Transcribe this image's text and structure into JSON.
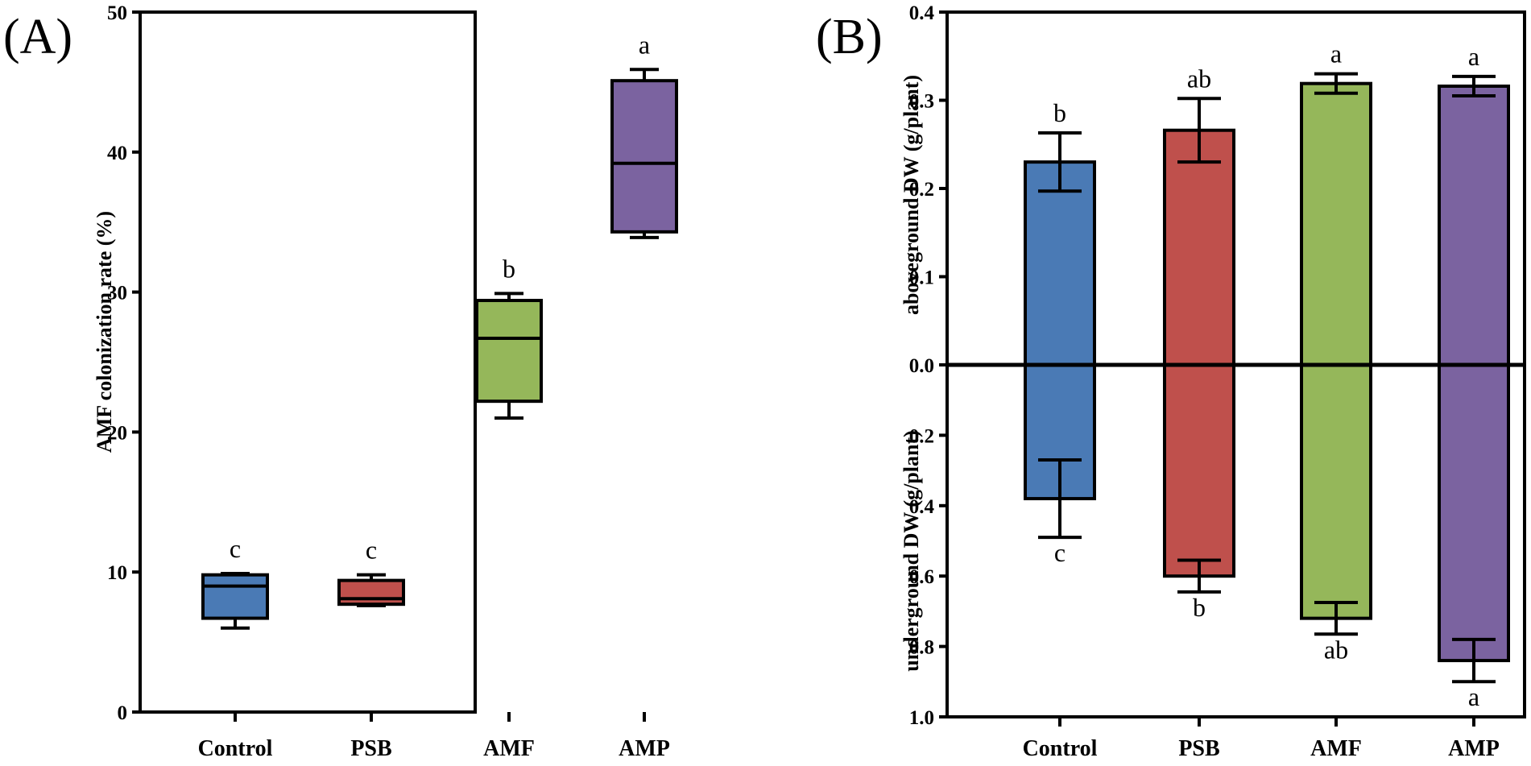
{
  "colors": {
    "Control": "#4a7ab5",
    "PSB": "#bf504c",
    "AMF": "#95b75a",
    "AMP": "#7b63a0",
    "stroke": "#000000"
  },
  "chart_data": [
    {
      "id": "A",
      "type": "box",
      "panel_label": "(A)",
      "title": "",
      "xlabel": "",
      "ylabel": "AMF colonization rate (%)",
      "ylim": [
        0,
        50
      ],
      "yticks": [
        0,
        10,
        20,
        30,
        40,
        50
      ],
      "grid": false,
      "categories": [
        "Control",
        "PSB",
        "AMF",
        "AMP"
      ],
      "boxes": [
        {
          "category": "Control",
          "min": 6.0,
          "q1": 6.7,
          "median": 9.0,
          "q3": 9.8,
          "max": 9.9,
          "letter": "c"
        },
        {
          "category": "PSB",
          "min": 7.6,
          "q1": 7.7,
          "median": 8.1,
          "q3": 9.4,
          "max": 9.8,
          "letter": "c"
        },
        {
          "category": "AMF",
          "min": 21.0,
          "q1": 22.2,
          "median": 26.7,
          "q3": 29.4,
          "max": 29.9,
          "letter": "b"
        },
        {
          "category": "AMP",
          "min": 33.9,
          "q1": 34.3,
          "median": 39.2,
          "q3": 45.1,
          "max": 45.9,
          "letter": "a"
        }
      ]
    },
    {
      "id": "B",
      "type": "bar",
      "panel_label": "(B)",
      "title": "",
      "xlabel": "",
      "ylabel_top": "aboveground DW (g/plant)",
      "ylabel_bottom": "underground DW (g/plant)",
      "top_ylim": [
        0,
        0.4
      ],
      "top_ticks": [
        {
          "value": 0.0,
          "label": "0.0"
        },
        {
          "value": 0.1,
          "label": "0.1"
        },
        {
          "value": 0.2,
          "label": "0.2"
        },
        {
          "value": 0.3,
          "label": "0.3"
        },
        {
          "value": 0.4,
          "label": "0.4"
        }
      ],
      "bottom_ylim": [
        0,
        1.0
      ],
      "bottom_ticks": [
        {
          "value": 0.2,
          "label": "0.2"
        },
        {
          "value": 0.4,
          "label": "0.4"
        },
        {
          "value": 0.6,
          "label": "0.6"
        },
        {
          "value": 0.8,
          "label": "0.8"
        },
        {
          "value": 1.0,
          "label": "1.0"
        }
      ],
      "grid": false,
      "categories": [
        "Control",
        "PSB",
        "AMF",
        "AMP"
      ],
      "series": [
        {
          "name": "aboveground DW",
          "direction": "up",
          "values": [
            0.23,
            0.266,
            0.319,
            0.316
          ],
          "errors": [
            0.033,
            0.036,
            0.011,
            0.011
          ],
          "letters": [
            "b",
            "ab",
            "a",
            "a"
          ]
        },
        {
          "name": "underground DW",
          "direction": "down",
          "values": [
            0.38,
            0.6,
            0.72,
            0.84
          ],
          "errors": [
            0.11,
            0.045,
            0.045,
            0.06
          ],
          "letters": [
            "c",
            "b",
            "ab",
            "a"
          ]
        }
      ]
    }
  ]
}
